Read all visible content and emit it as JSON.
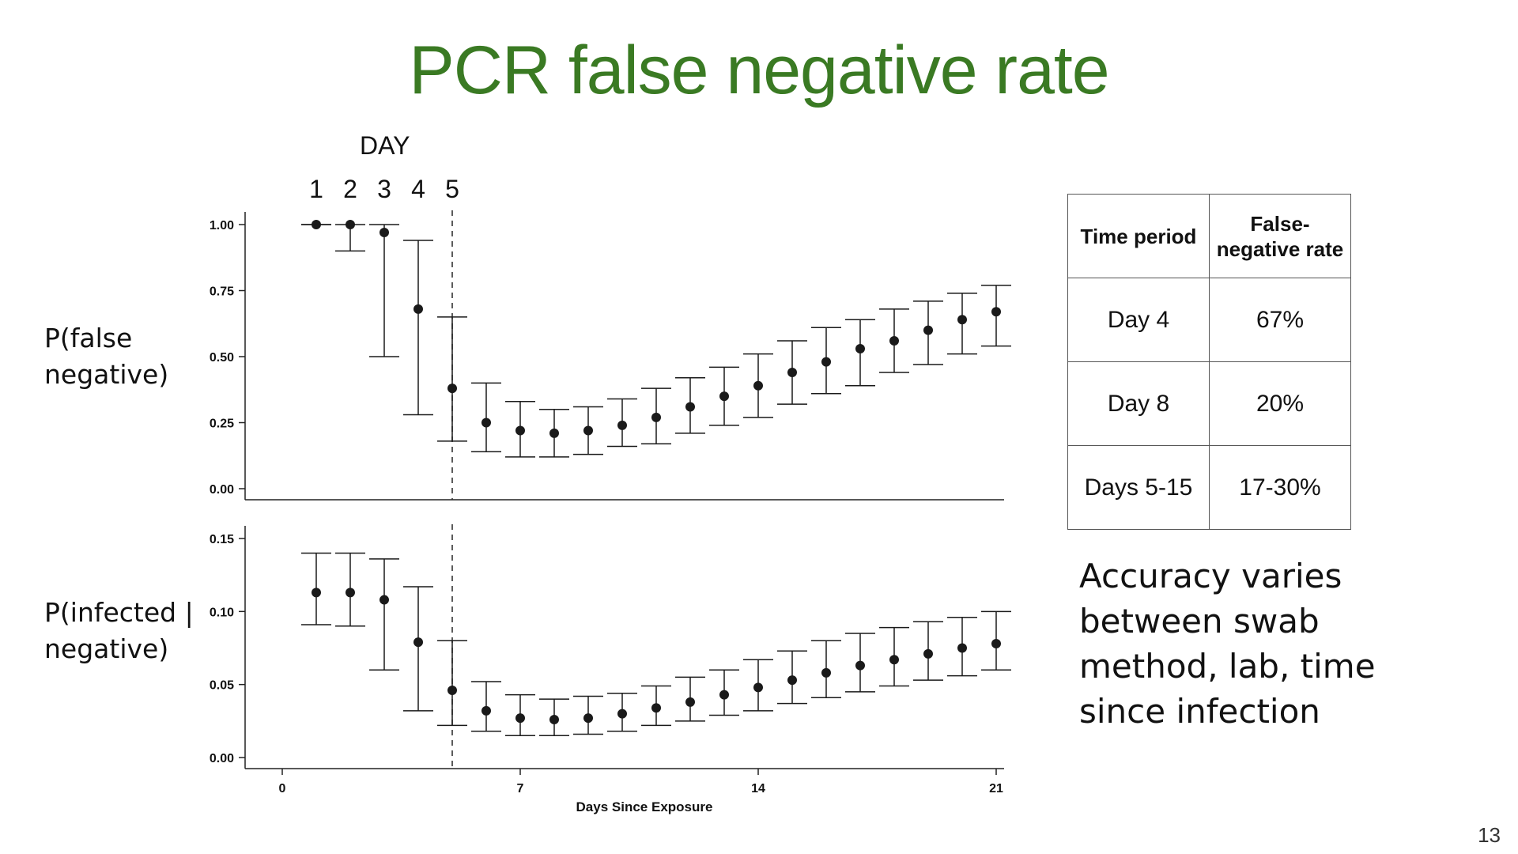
{
  "title": "PCR false negative rate",
  "page_number": "13",
  "colors": {
    "title": "#3a7a23",
    "marks": "#1a1a1a"
  },
  "day_header": "DAY",
  "day_markers": [
    "1",
    "2",
    "3",
    "4",
    "5"
  ],
  "top_ylabel": [
    "P(false",
    "negative)"
  ],
  "bottom_ylabel": [
    "P(infected |",
    "negative)"
  ],
  "table": {
    "headers": [
      "Time period",
      [
        "False-",
        "negative rate"
      ]
    ],
    "rows": [
      [
        "Day 4",
        "67%"
      ],
      [
        "Day 8",
        "20%"
      ],
      [
        "Days 5-15",
        "17-30%"
      ]
    ]
  },
  "note": [
    "Accuracy varies",
    "between swab",
    "method, lab, time",
    "since infection"
  ],
  "chart_data": [
    {
      "type": "scatter",
      "xlabel": "",
      "ylim": [
        0,
        1
      ],
      "yticks": [
        "0.00",
        "0.25",
        "0.50",
        "0.75",
        "1.00"
      ],
      "reference_line_x": 5,
      "x": [
        1,
        2,
        3,
        4,
        5,
        6,
        7,
        8,
        9,
        10,
        11,
        12,
        13,
        14,
        15,
        16,
        17,
        18,
        19,
        20,
        21
      ],
      "y": [
        1.0,
        1.0,
        0.97,
        0.68,
        0.38,
        0.25,
        0.22,
        0.21,
        0.22,
        0.24,
        0.27,
        0.31,
        0.35,
        0.39,
        0.44,
        0.48,
        0.53,
        0.56,
        0.6,
        0.64,
        0.67
      ],
      "lower": [
        1.0,
        0.9,
        0.5,
        0.28,
        0.18,
        0.14,
        0.12,
        0.12,
        0.13,
        0.16,
        0.17,
        0.21,
        0.24,
        0.27,
        0.32,
        0.36,
        0.39,
        0.44,
        0.47,
        0.51,
        0.54
      ],
      "upper": [
        1.0,
        1.0,
        1.0,
        0.94,
        0.65,
        0.4,
        0.33,
        0.3,
        0.31,
        0.34,
        0.38,
        0.42,
        0.46,
        0.51,
        0.56,
        0.61,
        0.64,
        0.68,
        0.71,
        0.74,
        0.77
      ]
    },
    {
      "type": "scatter",
      "xlabel": "Days Since Exposure",
      "xticks": [
        "0",
        "7",
        "14",
        "21"
      ],
      "ylim": [
        0,
        0.15
      ],
      "yticks": [
        "0.00",
        "0.05",
        "0.10",
        "0.15"
      ],
      "reference_line_x": 5,
      "x": [
        1,
        2,
        3,
        4,
        5,
        6,
        7,
        8,
        9,
        10,
        11,
        12,
        13,
        14,
        15,
        16,
        17,
        18,
        19,
        20,
        21
      ],
      "y": [
        0.113,
        0.113,
        0.108,
        0.079,
        0.046,
        0.032,
        0.027,
        0.026,
        0.027,
        0.03,
        0.034,
        0.038,
        0.043,
        0.048,
        0.053,
        0.058,
        0.063,
        0.067,
        0.071,
        0.075,
        0.078
      ],
      "lower": [
        0.091,
        0.09,
        0.06,
        0.032,
        0.022,
        0.018,
        0.015,
        0.015,
        0.016,
        0.018,
        0.022,
        0.025,
        0.029,
        0.032,
        0.037,
        0.041,
        0.045,
        0.049,
        0.053,
        0.056,
        0.06
      ],
      "upper": [
        0.14,
        0.14,
        0.136,
        0.117,
        0.08,
        0.052,
        0.043,
        0.04,
        0.042,
        0.044,
        0.049,
        0.055,
        0.06,
        0.067,
        0.073,
        0.08,
        0.085,
        0.089,
        0.093,
        0.096,
        0.1
      ]
    }
  ]
}
